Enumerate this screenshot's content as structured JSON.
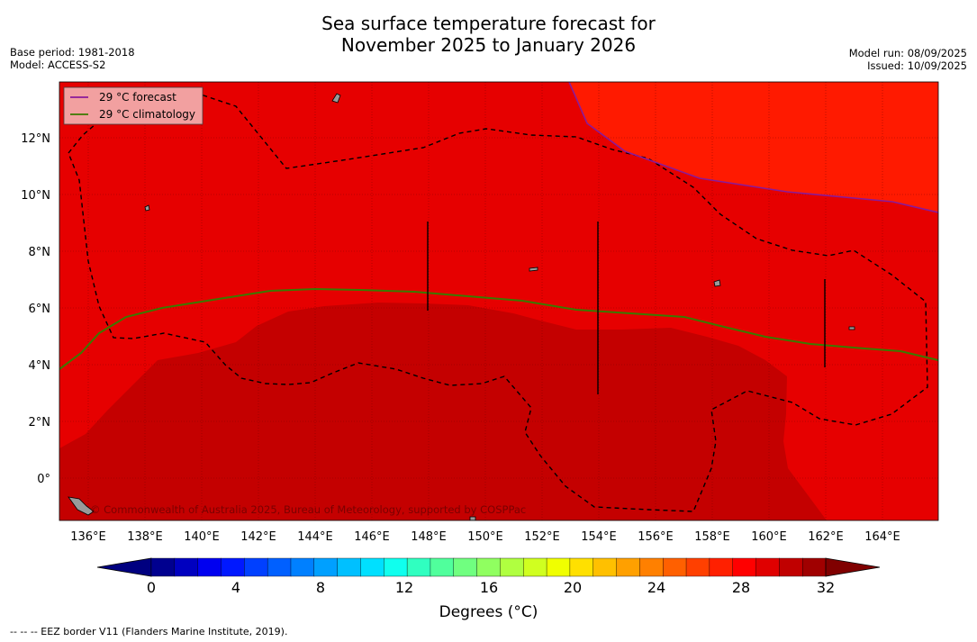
{
  "title": {
    "line1": "Sea surface temperature forecast for",
    "line2": "November 2025 to January 2026"
  },
  "meta_left": {
    "base_period": "Base period: 1981-2018",
    "model": "Model: ACCESS-S2"
  },
  "meta_right": {
    "model_run": "Model run: 08/09/2025",
    "issued": "Issued: 10/09/2025"
  },
  "legend": {
    "forecast_label": "29 °C  forecast",
    "climatology_label": "29 °C  climatology",
    "forecast_color": "#8a1a9a",
    "climatology_color": "#3a7a00"
  },
  "map": {
    "lat_labels": [
      "12°N",
      "10°N",
      "8°N",
      "6°N",
      "4°N",
      "2°N",
      "0°"
    ],
    "lon_labels": [
      "136°E",
      "138°E",
      "140°E",
      "142°E",
      "144°E",
      "146°E",
      "148°E",
      "150°E",
      "152°E",
      "154°E",
      "156°E",
      "158°E",
      "160°E",
      "162°E",
      "164°E"
    ],
    "copyright": "© Commonwealth of Australia 2025, Bureau of Meteorology, supported by COSPPac",
    "fill_colors": {
      "t29_30": "#e60000",
      "t30_31": "#c40000",
      "t28_29": "#ff1a00"
    }
  },
  "colorbar": {
    "label": "Degrees (°C)",
    "ticks": [
      "0",
      "4",
      "8",
      "12",
      "16",
      "20",
      "24",
      "28",
      "32"
    ],
    "colors": [
      "#00008f",
      "#0000c0",
      "#0000f0",
      "#0018ff",
      "#0040ff",
      "#0060ff",
      "#0080ff",
      "#00a0ff",
      "#00c0ff",
      "#00e0ff",
      "#10ffee",
      "#30ffc0",
      "#50ff9c",
      "#70ff80",
      "#90ff60",
      "#b0ff40",
      "#d0ff20",
      "#f0ff00",
      "#ffe000",
      "#ffc000",
      "#ffa000",
      "#ff8000",
      "#ff6000",
      "#ff4000",
      "#ff2000",
      "#ff0000",
      "#e00000",
      "#c00000",
      "#a00000"
    ],
    "under_color": "#000080",
    "over_color": "#800000"
  },
  "footnote": "--  --  -- EEZ border V11 (Flanders Marine Institute, 2019)."
}
